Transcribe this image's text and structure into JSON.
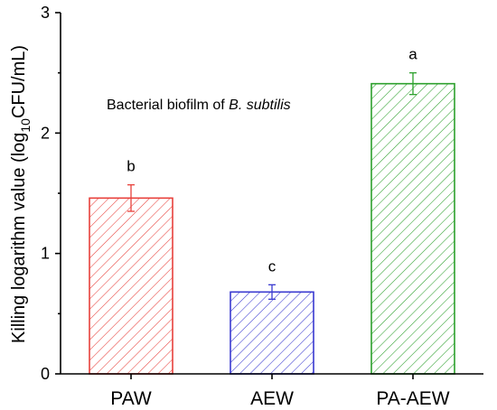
{
  "chart_data": {
    "type": "bar",
    "categories": [
      "PAW",
      "AEW",
      "PA-AEW"
    ],
    "values": [
      1.46,
      0.68,
      2.41
    ],
    "errors": [
      0.11,
      0.06,
      0.09
    ],
    "significance_letters": [
      "b",
      "c",
      "a"
    ],
    "colors": [
      "#e8413c",
      "#3a3ad0",
      "#2ca02c"
    ],
    "fill_pattern": "diagonal-hatch",
    "ylabel": {
      "prefix": "Killing logarithm value (log",
      "subscript": "10",
      "suffix": "CFU/mL)"
    },
    "xlabel": "",
    "title": "",
    "ylim": [
      0,
      3
    ],
    "yticks": [
      "0",
      "1",
      "2",
      "3"
    ],
    "annotation": {
      "prefix": "Bacterial biofilm of ",
      "italic": "B. subtilis"
    },
    "grid": false,
    "legend": "none"
  }
}
